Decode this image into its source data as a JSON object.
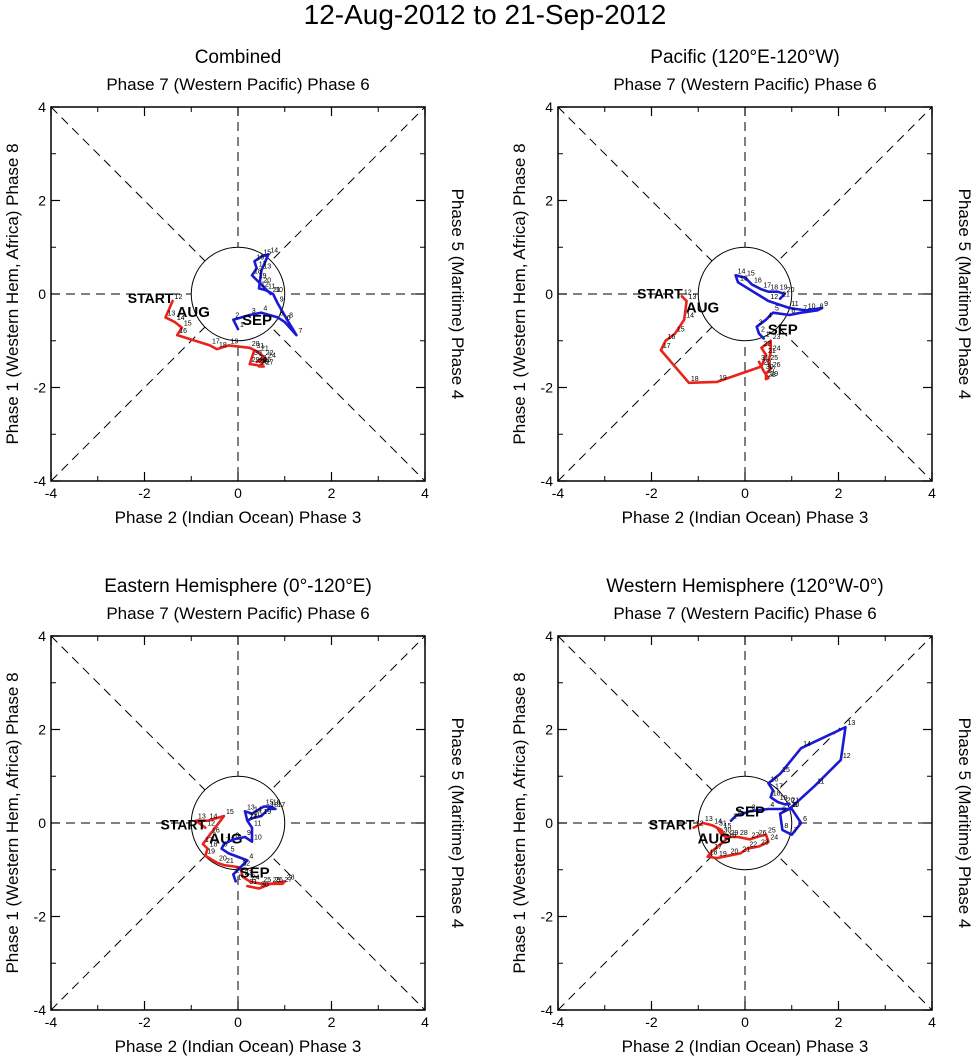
{
  "page_title": "12-Aug-2012 to 21-Sep-2012",
  "colors": {
    "aug": "#e8231b",
    "sep": "#1a1ad6",
    "start": "#000000",
    "axis": "#000000"
  },
  "axis_labels": {
    "top": "Phase 7 (Western Pacific) Phase 6",
    "bottom": "Phase 2 (Indian Ocean) Phase 3",
    "left": "Phase 1 (Western Hem, Africa) Phase 8",
    "right": "Phase 5 (Maritime) Phase 4"
  },
  "tick_labels": [
    "-4",
    "-2",
    "0",
    "2",
    "4"
  ],
  "start_label": "START",
  "month_labels": {
    "aug": "AUG",
    "sep": "SEP"
  },
  "chart_data": [
    {
      "type": "line",
      "title": "Combined",
      "xlim": [
        -4,
        4
      ],
      "ylim": [
        -4,
        4
      ],
      "xlabel": "Phase 2 (Indian Ocean) Phase 3",
      "ylabel": "Phase 1 (Western Hem, Africa) Phase 8",
      "series": [
        {
          "name": "AUG",
          "color": "#e8231b",
          "points": [
            [
              -1.4,
              -0.15
            ],
            [
              -1.55,
              -0.5
            ],
            [
              -1.35,
              -0.6
            ],
            [
              -1.2,
              -0.72
            ],
            [
              -1.3,
              -0.88
            ],
            [
              -0.6,
              -1.1
            ],
            [
              -0.45,
              -1.18
            ],
            [
              -0.2,
              -1.1
            ],
            [
              0.25,
              -1.15
            ],
            [
              0.45,
              -1.25
            ],
            [
              0.55,
              -1.35
            ],
            [
              0.4,
              -1.45
            ],
            [
              0.6,
              -1.4
            ],
            [
              0.5,
              -1.5
            ],
            [
              0.45,
              -1.55
            ],
            [
              0.55,
              -1.55
            ],
            [
              0.4,
              -1.52
            ],
            [
              0.25,
              -1.5
            ],
            [
              0.3,
              -1.35
            ],
            [
              0.35,
              -1.2
            ]
          ],
          "day_labels": [
            "12",
            "13",
            "14",
            "15",
            "16",
            "17",
            "18",
            "19",
            "20",
            "21",
            "22",
            "23",
            "24",
            "25",
            "26",
            "27",
            "28",
            "29",
            "30",
            "31"
          ]
        },
        {
          "name": "SEP",
          "color": "#1a1ad6",
          "points": [
            [
              0.0,
              -0.75
            ],
            [
              -0.1,
              -0.55
            ],
            [
              0.25,
              -0.45
            ],
            [
              0.5,
              -0.4
            ],
            [
              0.85,
              -0.5
            ],
            [
              1.0,
              -0.6
            ],
            [
              1.25,
              -0.88
            ],
            [
              1.05,
              -0.55
            ],
            [
              0.85,
              -0.2
            ],
            [
              0.75,
              0.0
            ],
            [
              0.6,
              0.08
            ],
            [
              0.45,
              0.12
            ],
            [
              0.5,
              0.5
            ],
            [
              0.65,
              0.85
            ],
            [
              0.5,
              0.8
            ],
            [
              0.35,
              0.7
            ],
            [
              0.4,
              0.55
            ],
            [
              0.3,
              0.4
            ],
            [
              0.4,
              0.3
            ],
            [
              0.5,
              0.2
            ],
            [
              0.7,
              0.0
            ]
          ],
          "day_labels": [
            "1",
            "2",
            "3",
            "4",
            "5",
            "6",
            "7",
            "8",
            "9",
            "10",
            "11",
            "12",
            "13",
            "14",
            "15",
            "16",
            "17",
            "18",
            "19",
            "20",
            "21"
          ]
        }
      ]
    },
    {
      "type": "line",
      "title": "Pacific (120°E-120°W)",
      "xlim": [
        -4,
        4
      ],
      "ylim": [
        -4,
        4
      ],
      "xlabel": "Phase 2 (Indian Ocean) Phase 3",
      "ylabel": "Phase 1 (Western Hem, Africa) Phase 8",
      "series": [
        {
          "name": "AUG",
          "color": "#e8231b",
          "points": [
            [
              -1.35,
              -0.05
            ],
            [
              -1.25,
              -0.15
            ],
            [
              -1.3,
              -0.55
            ],
            [
              -1.5,
              -0.85
            ],
            [
              -1.7,
              -1.0
            ],
            [
              -1.8,
              -1.2
            ],
            [
              -1.2,
              -1.9
            ],
            [
              -0.6,
              -1.88
            ],
            [
              0.35,
              -1.55
            ],
            [
              0.45,
              -1.3
            ],
            [
              0.35,
              -1.15
            ],
            [
              0.55,
              -1.0
            ],
            [
              0.55,
              -1.25
            ],
            [
              0.5,
              -1.45
            ],
            [
              0.55,
              -1.6
            ],
            [
              0.45,
              -1.7
            ],
            [
              0.45,
              -1.82
            ],
            [
              0.5,
              -1.8
            ],
            [
              0.4,
              -1.65
            ],
            [
              0.3,
              -1.45
            ]
          ],
          "day_labels": [
            "12",
            "13",
            "14",
            "15",
            "16",
            "17",
            "18",
            "19",
            "20",
            "21",
            "22",
            "23",
            "24",
            "25",
            "26",
            "27",
            "28",
            "29",
            "30",
            "31"
          ]
        },
        {
          "name": "SEP",
          "color": "#1a1ad6",
          "points": [
            [
              0.4,
              -0.95
            ],
            [
              0.3,
              -0.85
            ],
            [
              0.25,
              -0.7
            ],
            [
              0.45,
              -0.55
            ],
            [
              0.6,
              -0.4
            ],
            [
              0.95,
              -0.45
            ],
            [
              1.2,
              -0.4
            ],
            [
              1.55,
              -0.35
            ],
            [
              1.65,
              -0.3
            ],
            [
              1.3,
              -0.35
            ],
            [
              0.95,
              -0.3
            ],
            [
              0.5,
              -0.15
            ],
            [
              -0.15,
              0.25
            ],
            [
              -0.2,
              0.4
            ],
            [
              0.0,
              0.35
            ],
            [
              0.15,
              0.2
            ],
            [
              0.35,
              0.1
            ],
            [
              0.5,
              0.05
            ],
            [
              0.7,
              0.05
            ],
            [
              0.85,
              0.0
            ],
            [
              0.75,
              -0.1
            ]
          ],
          "day_labels": [
            "1",
            "2",
            "3",
            "4",
            "5",
            "6",
            "7",
            "8",
            "9",
            "10",
            "11",
            "12",
            "13",
            "14",
            "15",
            "16",
            "17",
            "18",
            "19",
            "20",
            "21"
          ]
        }
      ]
    },
    {
      "type": "line",
      "title": "Eastern Hemisphere (0°-120°E)",
      "xlim": [
        -4,
        4
      ],
      "ylim": [
        -4,
        4
      ],
      "xlabel": "Phase 2 (Indian Ocean) Phase 3",
      "ylabel": "Phase 1 (Western Hem, Africa) Phase 8",
      "series": [
        {
          "name": "AUG",
          "color": "#e8231b",
          "points": [
            [
              -0.7,
              -0.1
            ],
            [
              -0.9,
              0.05
            ],
            [
              -0.65,
              0.05
            ],
            [
              -0.3,
              0.15
            ],
            [
              -0.6,
              -0.25
            ],
            [
              -0.75,
              -0.45
            ],
            [
              -0.65,
              -0.55
            ],
            [
              -0.7,
              -0.7
            ],
            [
              -0.45,
              -0.85
            ],
            [
              -0.3,
              -0.9
            ],
            [
              0.05,
              -0.95
            ],
            [
              0.1,
              -1.15
            ],
            [
              0.25,
              -1.25
            ],
            [
              0.5,
              -1.3
            ],
            [
              0.75,
              -1.3
            ],
            [
              0.95,
              -1.3
            ],
            [
              1.0,
              -1.25
            ],
            [
              0.7,
              -1.3
            ],
            [
              0.45,
              -1.4
            ],
            [
              0.2,
              -1.35
            ]
          ],
          "day_labels": [
            "12",
            "13",
            "14",
            "15",
            "16",
            "17",
            "18",
            "19",
            "20",
            "21",
            "22",
            "23",
            "24",
            "25",
            "26",
            "27",
            "28",
            "29",
            "30",
            "31"
          ]
        },
        {
          "name": "SEP",
          "color": "#1a1ad6",
          "points": [
            [
              -0.05,
              -1.25
            ],
            [
              -0.1,
              -1.1
            ],
            [
              0.05,
              -0.95
            ],
            [
              0.2,
              -0.8
            ],
            [
              -0.2,
              -0.65
            ],
            [
              -0.35,
              -0.55
            ],
            [
              -0.3,
              -0.45
            ],
            [
              -0.1,
              -0.35
            ],
            [
              0.15,
              -0.3
            ],
            [
              0.3,
              -0.4
            ],
            [
              0.3,
              -0.1
            ],
            [
              0.2,
              0.05
            ],
            [
              0.15,
              0.25
            ],
            [
              0.3,
              0.2
            ],
            [
              0.55,
              0.35
            ],
            [
              0.7,
              0.35
            ],
            [
              0.8,
              0.3
            ],
            [
              0.65,
              0.3
            ],
            [
              0.5,
              0.15
            ],
            [
              0.3,
              0.1
            ],
            [
              0.2,
              0.05
            ]
          ],
          "day_labels": [
            "1",
            "2",
            "3",
            "4",
            "5",
            "6",
            "7",
            "8",
            "9",
            "10",
            "11",
            "12",
            "13",
            "14",
            "15",
            "16",
            "17",
            "18",
            "19",
            "20",
            "21"
          ]
        }
      ]
    },
    {
      "type": "line",
      "title": "Western Hemisphere (120°W-0°)",
      "xlim": [
        -4,
        4
      ],
      "ylim": [
        -4,
        4
      ],
      "xlabel": "Phase 2 (Indian Ocean) Phase 3",
      "ylabel": "Phase 1 (Western Hem, Africa) Phase 8",
      "series": [
        {
          "name": "AUG",
          "color": "#e8231b",
          "points": [
            [
              -1.1,
              -0.1
            ],
            [
              -0.9,
              0.0
            ],
            [
              -0.7,
              -0.05
            ],
            [
              -0.5,
              -0.15
            ],
            [
              -0.4,
              -0.35
            ],
            [
              -0.7,
              -0.6
            ],
            [
              -0.8,
              -0.72
            ],
            [
              -0.6,
              -0.75
            ],
            [
              -0.35,
              -0.7
            ],
            [
              -0.1,
              -0.65
            ],
            [
              0.05,
              -0.55
            ],
            [
              0.3,
              -0.5
            ],
            [
              0.5,
              -0.4
            ],
            [
              0.45,
              -0.25
            ],
            [
              0.25,
              -0.3
            ],
            [
              0.1,
              -0.35
            ],
            [
              -0.15,
              -0.3
            ],
            [
              -0.35,
              -0.3
            ],
            [
              -0.5,
              -0.25
            ],
            [
              -0.6,
              -0.1
            ]
          ],
          "day_labels": [
            "12",
            "13",
            "14",
            "15",
            "16",
            "17",
            "18",
            "19",
            "20",
            "21",
            "22",
            "23",
            "24",
            "25",
            "26",
            "27",
            "28",
            "29",
            "30",
            "31"
          ]
        },
        {
          "name": "SEP",
          "color": "#1a1ad6",
          "points": [
            [
              -0.3,
              0.05
            ],
            [
              -0.2,
              0.15
            ],
            [
              0.1,
              0.25
            ],
            [
              0.5,
              0.3
            ],
            [
              1.0,
              0.3
            ],
            [
              1.2,
              0.0
            ],
            [
              1.0,
              -0.25
            ],
            [
              0.8,
              -0.15
            ],
            [
              0.75,
              0.2
            ],
            [
              0.95,
              0.3
            ],
            [
              1.5,
              0.8
            ],
            [
              2.05,
              1.35
            ],
            [
              2.15,
              2.05
            ],
            [
              1.2,
              1.6
            ],
            [
              0.75,
              1.05
            ],
            [
              0.5,
              0.85
            ],
            [
              0.6,
              0.7
            ],
            [
              0.55,
              0.55
            ],
            [
              0.7,
              0.45
            ],
            [
              0.85,
              0.4
            ],
            [
              0.95,
              0.4
            ]
          ],
          "day_labels": [
            "1",
            "2",
            "3",
            "4",
            "5",
            "6",
            "7",
            "8",
            "9",
            "10",
            "11",
            "12",
            "13",
            "14",
            "15",
            "16",
            "17",
            "18",
            "19",
            "20",
            "21"
          ]
        }
      ]
    }
  ]
}
